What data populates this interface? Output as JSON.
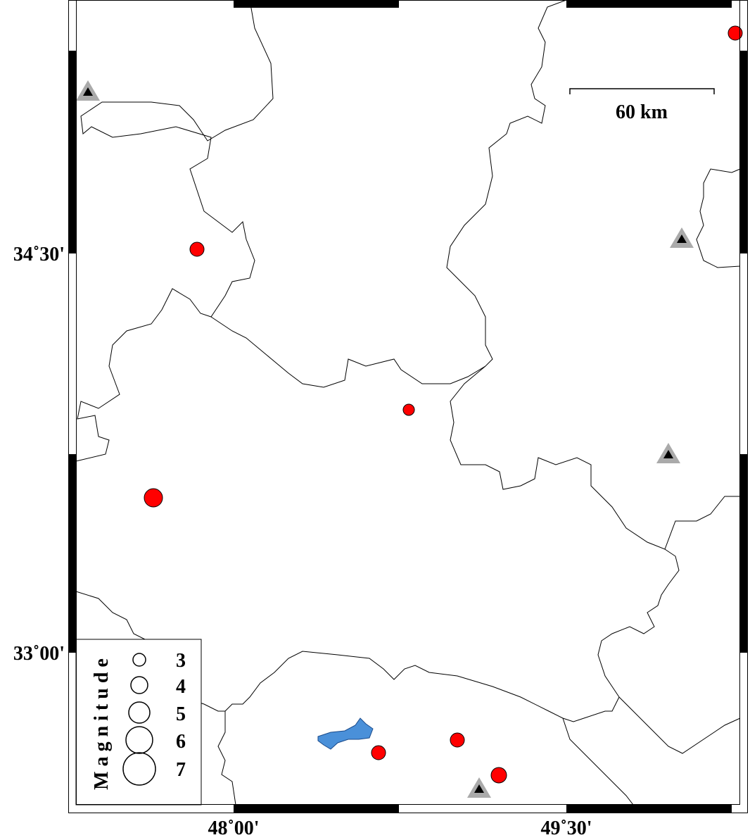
{
  "frame": {
    "lat_labels": [
      "34˚30'",
      "33˚00'"
    ],
    "lon_labels": [
      "48˚00'",
      "49˚30'"
    ]
  },
  "scale_bar": {
    "label": "60 km"
  },
  "legend": {
    "title": "Magnitude",
    "labels": [
      "3",
      "4",
      "5",
      "6",
      "7"
    ]
  }
}
